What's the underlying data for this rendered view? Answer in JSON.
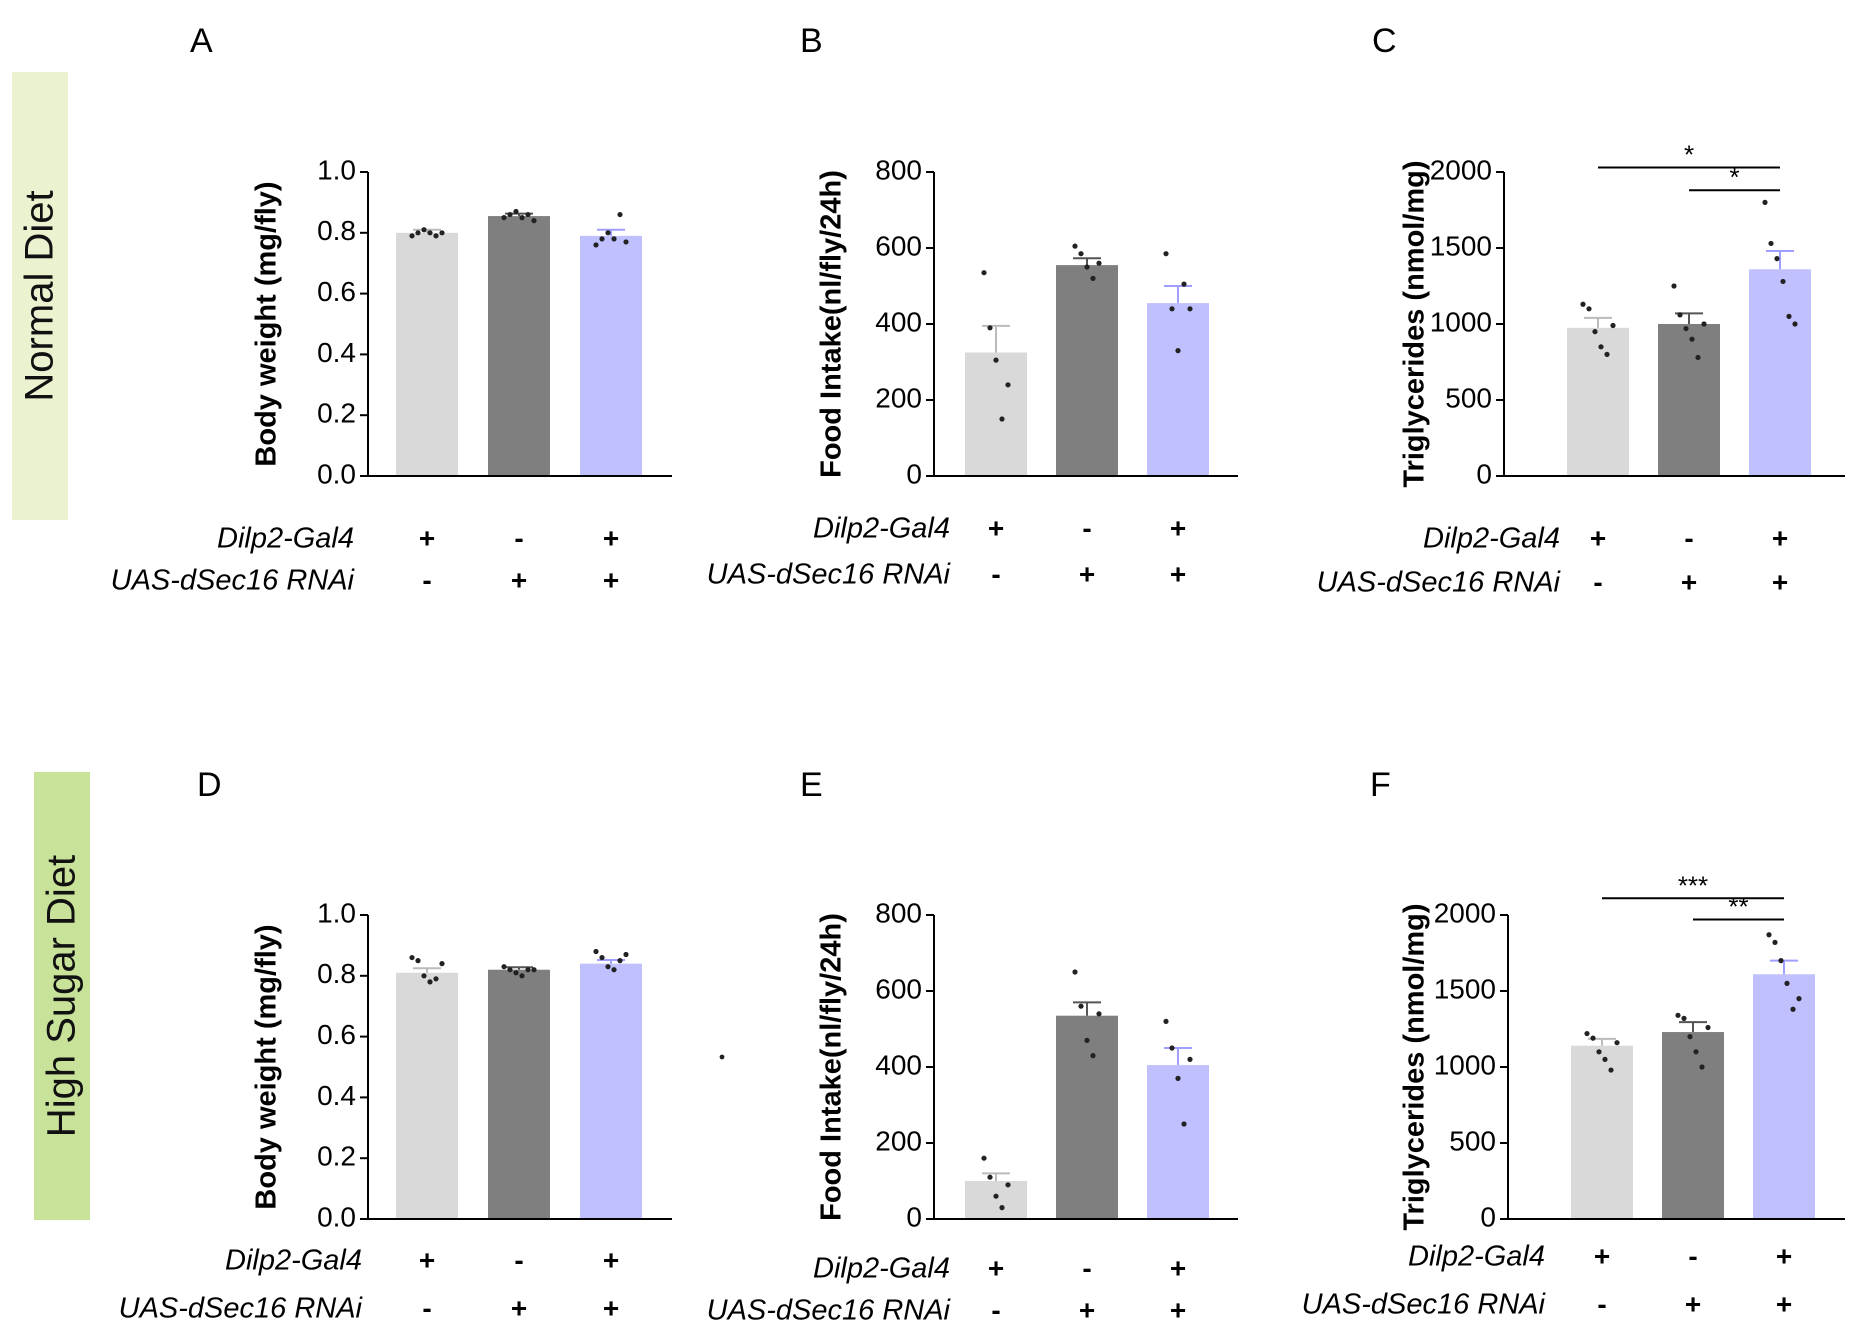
{
  "colors": {
    "control_gal4": "#d9d9d9",
    "control_rnai": "#7f7f7f",
    "knockdown": "#c0c0ff",
    "knockdown_err": "#9f9fff",
    "normal_band": "#eaf2d0",
    "high_sugar_band": "#c9e29a",
    "axis": "#000000"
  },
  "rows": [
    {
      "label": "Normal Diet"
    },
    {
      "label": "High Sugar Diet"
    }
  ],
  "genotype_rows": [
    "Dilp2-Gal4",
    "UAS-dSec16 RNAi"
  ],
  "genotype_signs": [
    [
      "+",
      "-",
      "+"
    ],
    [
      "-",
      "+",
      "+"
    ]
  ],
  "chart_data": [
    {
      "panel": "A",
      "type": "bar",
      "title": "",
      "xlabel": "",
      "ylabel": "Body weight (mg/fly)",
      "ylim": [
        0,
        1.0
      ],
      "yticks": [
        0.0,
        0.2,
        0.4,
        0.6,
        0.8,
        1.0
      ],
      "ytick_decimals": 1,
      "values": [
        0.8,
        0.855,
        0.79
      ],
      "errors": [
        0.01,
        0.008,
        0.02
      ],
      "points": [
        [
          0.79,
          0.8,
          0.81,
          0.8,
          0.79,
          0.8
        ],
        [
          0.85,
          0.86,
          0.87,
          0.85,
          0.86,
          0.84
        ],
        [
          0.76,
          0.78,
          0.8,
          0.78,
          0.86,
          0.77
        ]
      ],
      "significance": []
    },
    {
      "panel": "B",
      "type": "bar",
      "title": "",
      "xlabel": "",
      "ylabel": "Food Intake(nl/fly/24h)",
      "ylim": [
        0,
        800
      ],
      "yticks": [
        0,
        200,
        400,
        600,
        800
      ],
      "ytick_decimals": 0,
      "values": [
        325,
        555,
        455
      ],
      "errors": [
        70,
        18,
        45
      ],
      "points": [
        [
          535,
          390,
          305,
          150,
          240
        ],
        [
          605,
          585,
          550,
          520,
          560
        ],
        [
          585,
          440,
          330,
          505,
          440
        ]
      ],
      "significance": []
    },
    {
      "panel": "C",
      "type": "bar",
      "title": "",
      "xlabel": "",
      "ylabel": "Triglycerides (nmol/mg)",
      "ylim": [
        0,
        2000
      ],
      "yticks": [
        0,
        500,
        1000,
        1500,
        2000
      ],
      "ytick_decimals": 0,
      "values": [
        975,
        1000,
        1360
      ],
      "errors": [
        65,
        70,
        120
      ],
      "points": [
        [
          1130,
          1100,
          950,
          850,
          800,
          990
        ],
        [
          1250,
          1060,
          970,
          900,
          780,
          1000
        ],
        [
          1800,
          1530,
          1430,
          1280,
          1050,
          1000
        ]
      ],
      "significance": [
        {
          "from": 0,
          "to": 2,
          "label": "*",
          "y": 2030
        },
        {
          "from": 1,
          "to": 2,
          "label": "*",
          "y": 1880
        }
      ]
    },
    {
      "panel": "D",
      "type": "bar",
      "title": "",
      "xlabel": "",
      "ylabel": "Body weight (mg/fly)",
      "ylim": [
        0,
        1.0
      ],
      "yticks": [
        0.0,
        0.2,
        0.4,
        0.6,
        0.8,
        1.0
      ],
      "ytick_decimals": 1,
      "values": [
        0.81,
        0.82,
        0.84
      ],
      "errors": [
        0.015,
        0.008,
        0.012
      ],
      "points": [
        [
          0.86,
          0.85,
          0.8,
          0.78,
          0.79,
          0.84
        ],
        [
          0.83,
          0.82,
          0.81,
          0.8,
          0.82,
          0.82
        ],
        [
          0.88,
          0.86,
          0.83,
          0.82,
          0.85,
          0.87
        ]
      ],
      "significance": []
    },
    {
      "panel": "E",
      "type": "bar",
      "title": "",
      "xlabel": "",
      "ylabel": "Food Intake(nl/fly/24h)",
      "ylim": [
        0,
        800
      ],
      "yticks": [
        0,
        200,
        400,
        600,
        800
      ],
      "ytick_decimals": 0,
      "values": [
        100,
        535,
        405
      ],
      "errors": [
        20,
        35,
        45
      ],
      "points": [
        [
          160,
          110,
          60,
          30,
          90
        ],
        [
          650,
          560,
          470,
          430,
          540
        ],
        [
          520,
          450,
          370,
          250,
          420
        ]
      ],
      "significance": []
    },
    {
      "panel": "F",
      "type": "bar",
      "title": "",
      "xlabel": "",
      "ylabel": "Triglycerides (nmol/mg)",
      "ylim": [
        0,
        2000
      ],
      "yticks": [
        0,
        500,
        1000,
        1500,
        2000
      ],
      "ytick_decimals": 0,
      "values": [
        1140,
        1230,
        1610
      ],
      "errors": [
        45,
        65,
        90
      ],
      "points": [
        [
          1220,
          1190,
          1100,
          1050,
          980,
          1160
        ],
        [
          1340,
          1320,
          1200,
          1100,
          1000,
          1260
        ],
        [
          1870,
          1820,
          1700,
          1550,
          1380,
          1450
        ]
      ],
      "significance": [
        {
          "from": 0,
          "to": 2,
          "label": "***",
          "y": 2110
        },
        {
          "from": 1,
          "to": 2,
          "label": "**",
          "y": 1970
        }
      ]
    }
  ]
}
